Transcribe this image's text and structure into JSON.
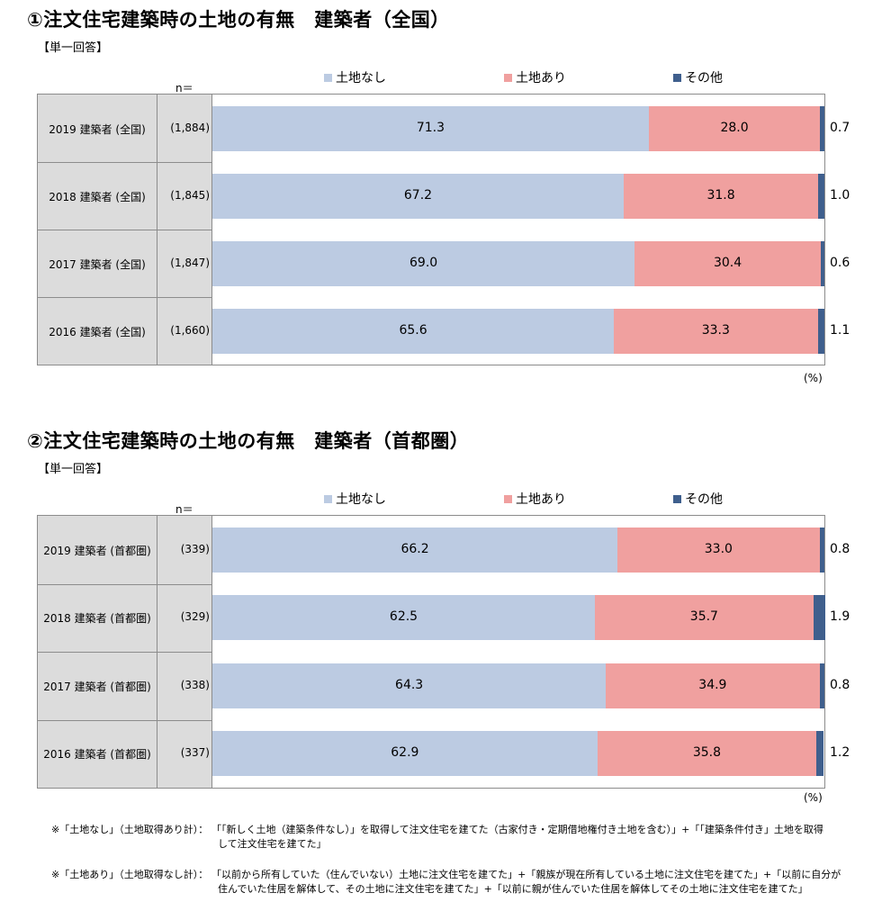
{
  "legend": [
    {
      "label": "土地なし",
      "color": "#bccbe2"
    },
    {
      "label": "土地あり",
      "color": "#f0a09f"
    },
    {
      "label": "その他",
      "color": "#3f5f8d"
    }
  ],
  "n_label": "n＝",
  "unit_label": "(%)",
  "chart_data": [
    {
      "type": "bar",
      "orientation": "horizontal-stacked",
      "title": "①注文住宅建築時の土地の有無　建築者（全国）",
      "subtitle": "【単一回答】",
      "categories": [
        "2019 建築者 (全国)",
        "2018 建築者 (全国)",
        "2017 建築者 (全国)",
        "2016 建築者 (全国)"
      ],
      "n": [
        "(1,884)",
        "(1,845)",
        "(1,847)",
        "(1,660)"
      ],
      "series": [
        {
          "name": "土地なし",
          "values": [
            71.3,
            67.2,
            69.0,
            65.6
          ],
          "labels": [
            "71.3",
            "67.2",
            "69.0",
            "65.6"
          ]
        },
        {
          "name": "土地あり",
          "values": [
            28.0,
            31.8,
            30.4,
            33.3
          ],
          "labels": [
            "28.0",
            "31.8",
            "30.4",
            "33.3"
          ]
        },
        {
          "name": "その他",
          "values": [
            0.7,
            1.0,
            0.6,
            1.1
          ],
          "labels": [
            "0.7",
            "1.0",
            "0.6",
            "1.1"
          ]
        }
      ],
      "xlim": [
        0,
        100
      ],
      "legend_position": "top"
    },
    {
      "type": "bar",
      "orientation": "horizontal-stacked",
      "title": "②注文住宅建築時の土地の有無　建築者（首都圏）",
      "subtitle": "【単一回答】",
      "categories": [
        "2019 建築者 (首都圏)",
        "2018 建築者 (首都圏)",
        "2017 建築者 (首都圏)",
        "2016 建築者 (首都圏)"
      ],
      "n": [
        "(339)",
        "(329)",
        "(338)",
        "(337)"
      ],
      "series": [
        {
          "name": "土地なし",
          "values": [
            66.2,
            62.5,
            64.3,
            62.9
          ],
          "labels": [
            "66.2",
            "62.5",
            "64.3",
            "62.9"
          ]
        },
        {
          "name": "土地あり",
          "values": [
            33.0,
            35.7,
            34.9,
            35.8
          ],
          "labels": [
            "33.0",
            "35.7",
            "34.9",
            "35.8"
          ]
        },
        {
          "name": "その他",
          "values": [
            0.8,
            1.9,
            0.8,
            1.2
          ],
          "labels": [
            "0.8",
            "1.9",
            "0.8",
            "1.2"
          ]
        }
      ],
      "xlim": [
        0,
        100
      ],
      "legend_position": "top"
    }
  ],
  "notes": [
    {
      "label": "※「土地なし」（土地取得あり計）：",
      "lines": [
        "「「新しく土地（建築条件なし）」を取得して注文住宅を建てた（古家付き・定期借地権付き土地を含む）」+「「建築条件付き」土地を取得",
        "して注文住宅を建てた」"
      ]
    },
    {
      "label": "※「土地あり」（土地取得なし計）：",
      "lines": [
        "「以前から所有していた（住んでいない）土地に注文住宅を建てた」+「親族が現在所有している土地に注文住宅を建てた」+「以前に自分が",
        "住んでいた住居を解体して、その土地に注文住宅を建てた」+「以前に親が住んでいた住居を解体してその土地に注文住宅を建てた」"
      ]
    }
  ]
}
